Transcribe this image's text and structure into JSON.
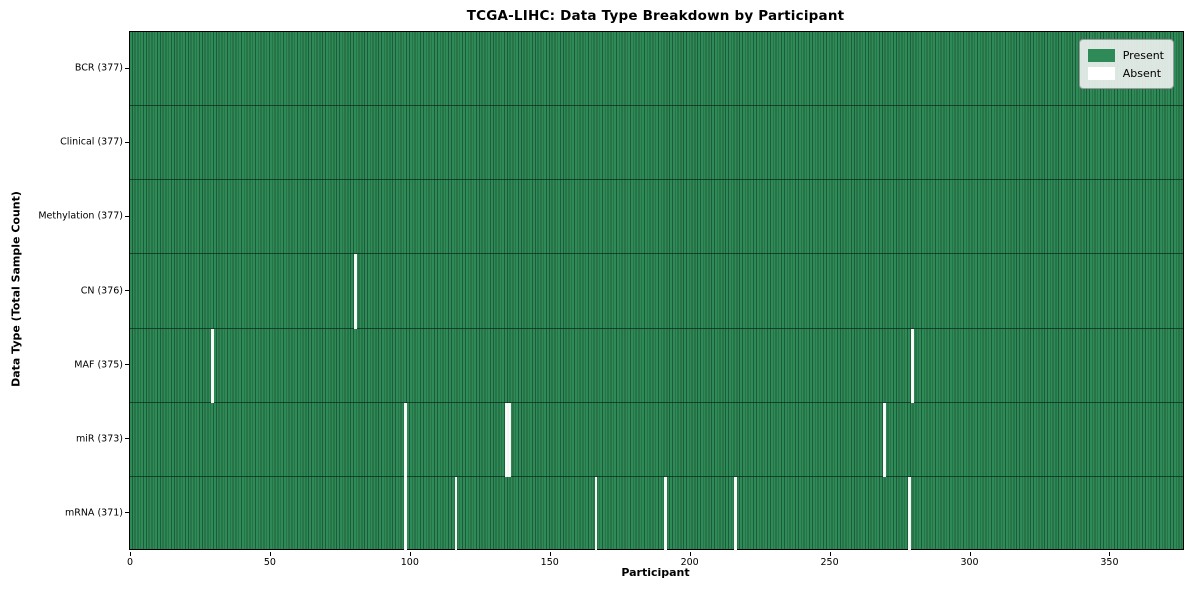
{
  "chart_data": {
    "type": "heatmap",
    "title": "TCGA-LIHC: Data Type Breakdown by Participant",
    "xlabel": "Participant",
    "ylabel": "Data Type (Total Sample Count)",
    "x_ticks": [
      0,
      50,
      100,
      150,
      200,
      250,
      300,
      350
    ],
    "x_range": [
      0,
      377
    ],
    "n_participants": 377,
    "grid": false,
    "rows": [
      {
        "key": "bcr",
        "label": "BCR (377)",
        "data_type": "BCR",
        "present_count": 377,
        "absent_participants": []
      },
      {
        "key": "clinical",
        "label": "Clinical (377)",
        "data_type": "Clinical",
        "present_count": 377,
        "absent_participants": []
      },
      {
        "key": "methylation",
        "label": "Methylation (377)",
        "data_type": "Methylation",
        "present_count": 377,
        "absent_participants": []
      },
      {
        "key": "cn",
        "label": "CN (376)",
        "data_type": "CN",
        "present_count": 376,
        "absent_participants": [
          80
        ]
      },
      {
        "key": "maf",
        "label": "MAF (375)",
        "data_type": "MAF",
        "present_count": 375,
        "absent_participants": [
          29,
          279
        ]
      },
      {
        "key": "mir",
        "label": "miR (373)",
        "data_type": "miR",
        "present_count": 373,
        "absent_participants": [
          98,
          134,
          135,
          269
        ]
      },
      {
        "key": "mrna",
        "label": "mRNA (371)",
        "data_type": "mRNA",
        "present_count": 371,
        "absent_participants": [
          98,
          116,
          166,
          191,
          216,
          278
        ]
      }
    ],
    "legend": {
      "position": "upper right",
      "items": [
        {
          "label": "Present",
          "color": "#2e8b57"
        },
        {
          "label": "Absent",
          "color": "#ffffff"
        }
      ]
    },
    "colors": {
      "present": "#2e8b57",
      "absent": "#fcfcfc",
      "cell_edge": "#1d5c3a",
      "row_divider": "rgba(5,25,15,0.60)",
      "axis": "#000000"
    }
  }
}
